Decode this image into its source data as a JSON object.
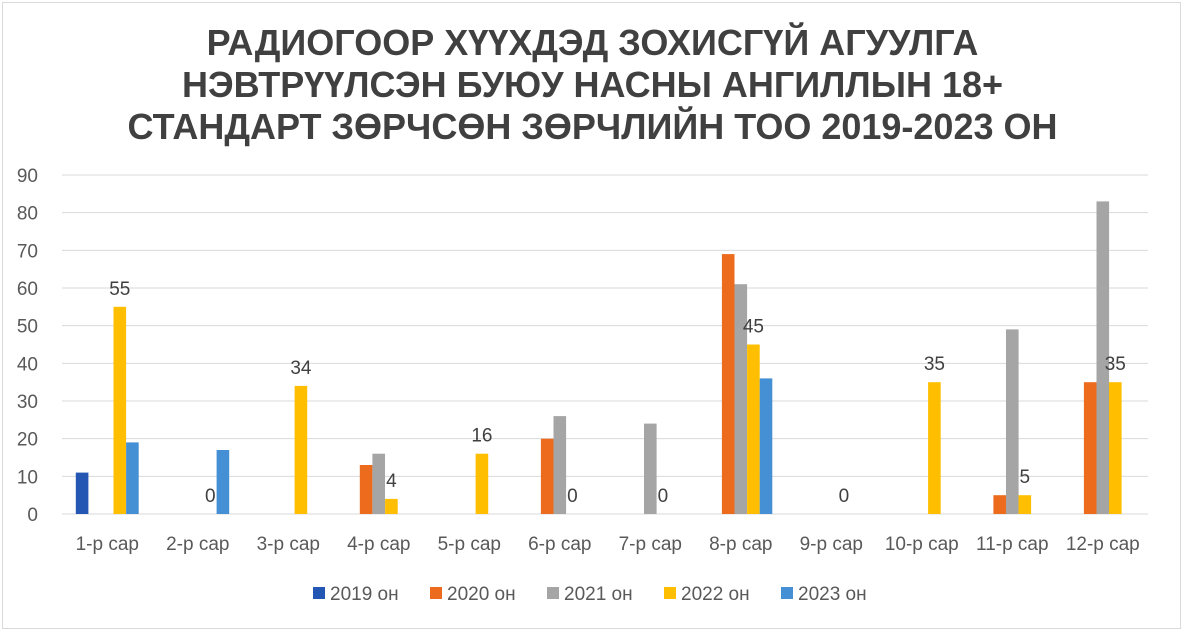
{
  "chart_data": {
    "type": "bar",
    "title_lines": [
      "РАДИОГООР ХҮҮХДЭД ЗОХИСГҮЙ АГУУЛГА",
      "НЭВТРҮҮЛСЭН БУЮУ НАСНЫ АНГИЛЛЫН 18+",
      "СТАНДАРТ ЗӨРЧСӨН ЗӨРЧЛИЙН ТОО 2019-2023 ОН"
    ],
    "categories": [
      "1-р сар",
      "2-р сар",
      "3-р сар",
      "4-р сар",
      "5-р сар",
      "6-р сар",
      "7-р сар",
      "8-р сар",
      "9-р сар",
      "10-р сар",
      "11-р сар",
      "12-р сар"
    ],
    "series": [
      {
        "name": "2019 он",
        "color": "#2456b4",
        "values": [
          11,
          null,
          null,
          null,
          null,
          null,
          null,
          null,
          null,
          null,
          null,
          null
        ]
      },
      {
        "name": "2020 он",
        "color": "#ed6b1c",
        "values": [
          null,
          null,
          null,
          13,
          null,
          20,
          null,
          69,
          null,
          null,
          5,
          35
        ]
      },
      {
        "name": "2021 он",
        "color": "#a5a5a5",
        "values": [
          null,
          null,
          null,
          16,
          null,
          26,
          24,
          61,
          null,
          null,
          49,
          83
        ]
      },
      {
        "name": "2022 он",
        "color": "#ffbf00",
        "values": [
          55,
          null,
          34,
          4,
          16,
          null,
          null,
          45,
          null,
          35,
          5,
          35
        ]
      },
      {
        "name": "2023 он",
        "color": "#4590d5",
        "values": [
          19,
          17,
          null,
          null,
          null,
          null,
          null,
          36,
          null,
          null,
          null,
          null
        ]
      }
    ],
    "data_labels": [
      {
        "category_index": 0,
        "series_index": 3,
        "text": "55"
      },
      {
        "category_index": 1,
        "series_index": 3,
        "text": "0"
      },
      {
        "category_index": 2,
        "series_index": 3,
        "text": "34"
      },
      {
        "category_index": 3,
        "series_index": 3,
        "text": "4"
      },
      {
        "category_index": 4,
        "series_index": 3,
        "text": "16"
      },
      {
        "category_index": 5,
        "series_index": 3,
        "text": "0"
      },
      {
        "category_index": 6,
        "series_index": 3,
        "text": "0"
      },
      {
        "category_index": 7,
        "series_index": 3,
        "text": "45"
      },
      {
        "category_index": 8,
        "series_index": 3,
        "text": "0"
      },
      {
        "category_index": 9,
        "series_index": 3,
        "text": "35"
      },
      {
        "category_index": 10,
        "series_index": 3,
        "text": "5"
      },
      {
        "category_index": 11,
        "series_index": 3,
        "text": "35"
      }
    ],
    "ylim": [
      0,
      90
    ],
    "yticks": [
      0,
      10,
      20,
      30,
      40,
      50,
      60,
      70,
      80,
      90
    ],
    "grid": true,
    "legend_position": "bottom",
    "text_color": "#595959",
    "grid_color": "#d9d9d9"
  }
}
